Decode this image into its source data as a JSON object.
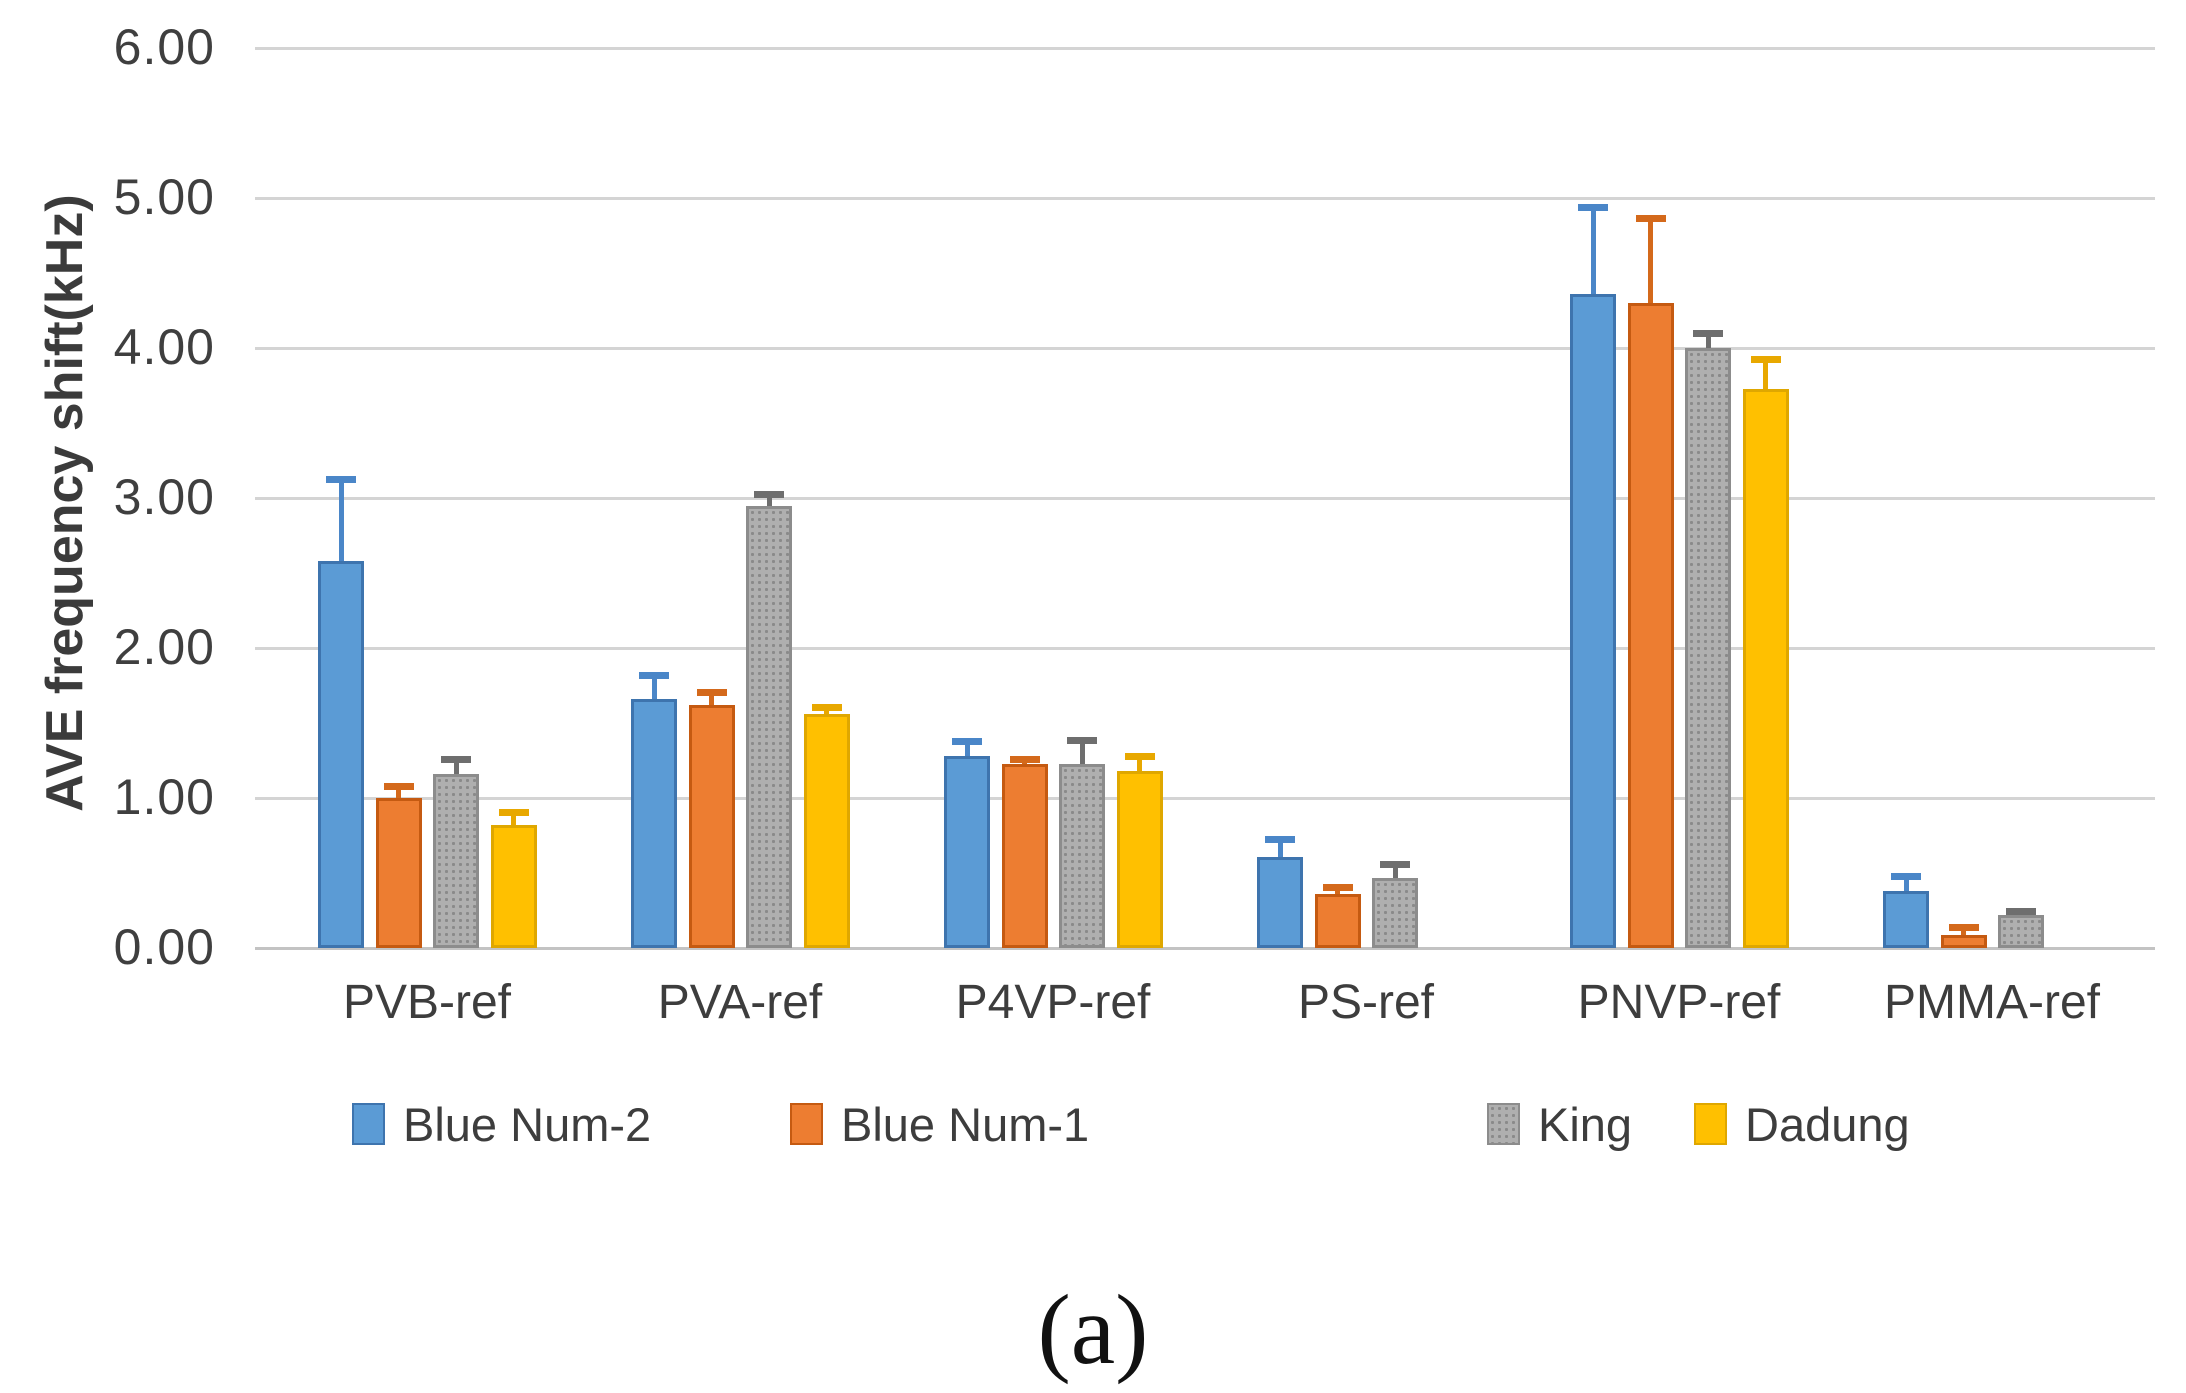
{
  "caption": {
    "label": "(a)"
  },
  "chart_data": {
    "type": "bar",
    "title": "",
    "xlabel": "",
    "ylabel": "AVE frequency shift(kHz)",
    "ylim": [
      0,
      6
    ],
    "ytick_step": 1.0,
    "ytick_labels": [
      "6.00",
      "5.00",
      "4.00",
      "3.00",
      "2.00",
      "1.00",
      "0.00"
    ],
    "grid": true,
    "legend_position": "bottom",
    "error_bars": {
      "direction": "plus",
      "caps": true
    },
    "categories": [
      "PVB-ref",
      "PVA-ref",
      "P4VP-ref",
      "PS-ref",
      "PNVP-ref",
      "PMMA-ref"
    ],
    "series": [
      {
        "name": "Blue Num-2",
        "color": "#5B9BD5",
        "border_color": "#3E74AE",
        "error_color": "#4A86C8",
        "pattern": "solid",
        "values": [
          2.58,
          1.66,
          1.28,
          0.61,
          4.36,
          0.38
        ],
        "errors": [
          0.55,
          0.16,
          0.1,
          0.12,
          0.58,
          0.1
        ]
      },
      {
        "name": "Blue Num-1",
        "color": "#ED7D31",
        "border_color": "#C55A11",
        "error_color": "#D4691B",
        "pattern": "solid",
        "values": [
          1.0,
          1.62,
          1.23,
          0.36,
          4.3,
          0.09
        ],
        "errors": [
          0.08,
          0.09,
          0.03,
          0.05,
          0.57,
          0.05
        ]
      },
      {
        "name": "King",
        "color": "#AFAFAF",
        "border_color": "#8C8C8C",
        "error_color": "#6E6E6E",
        "pattern": "dots",
        "values": [
          1.16,
          2.95,
          1.23,
          0.47,
          4.0,
          0.22
        ],
        "errors": [
          0.1,
          0.08,
          0.16,
          0.09,
          0.1,
          0.03
        ]
      },
      {
        "name": "Dadung",
        "color": "#FFC000",
        "border_color": "#DFA700",
        "error_color": "#E8A800",
        "pattern": "solid",
        "values": [
          0.82,
          1.56,
          1.18,
          null,
          3.73,
          null
        ],
        "errors": [
          0.09,
          0.05,
          0.1,
          null,
          0.2,
          null
        ]
      }
    ]
  }
}
